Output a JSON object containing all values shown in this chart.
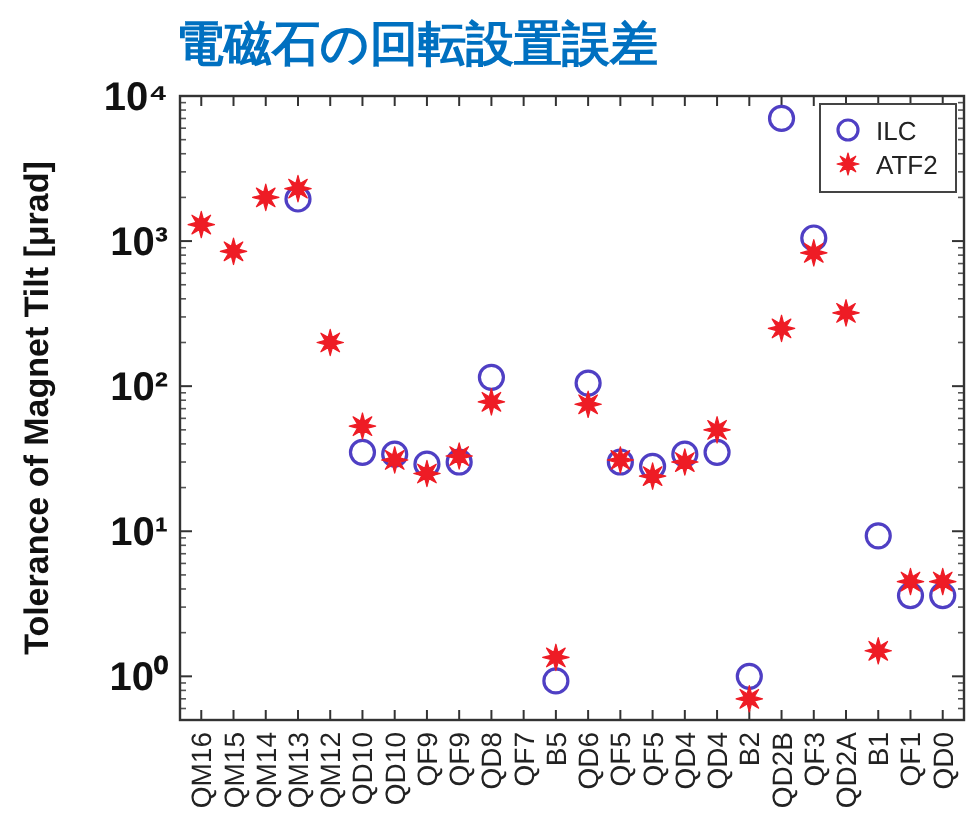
{
  "chart_data": {
    "type": "scatter",
    "title": "電磁石の回転設置誤差",
    "ylabel": "Tolerance of Magnet Tilt [μrad]",
    "categories": [
      "QM16",
      "QM15",
      "QM14",
      "QM13",
      "QM12",
      "QD10",
      "QD10",
      "QF9",
      "QF9",
      "QD8",
      "QF7",
      "B5",
      "QD6",
      "QF5",
      "QF5",
      "QD4",
      "QD4",
      "B2",
      "QD2B",
      "QF3",
      "QD2A",
      "B1",
      "QF1",
      "QD0"
    ],
    "series": [
      {
        "name": "ILC",
        "color": "#4f3fc4",
        "marker": "circle",
        "values": [
          null,
          null,
          null,
          1950,
          null,
          35,
          34,
          29,
          30,
          115,
          null,
          0.93,
          105,
          30,
          28,
          34,
          35,
          1.0,
          7000,
          1050,
          null,
          9.3,
          3.6,
          3.6
        ]
      },
      {
        "name": "ATF2",
        "color": "#ee1c25",
        "marker": "star",
        "values": [
          1300,
          850,
          2000,
          2300,
          200,
          53,
          31,
          25,
          33,
          78,
          null,
          1.35,
          75,
          31,
          24,
          30,
          50,
          0.7,
          250,
          830,
          320,
          1.5,
          4.5,
          4.5
        ]
      }
    ],
    "log": true,
    "ylim": [
      0.5,
      10000
    ],
    "yticks": [
      {
        "value": 1,
        "label": "10⁰"
      },
      {
        "value": 10,
        "label": "10¹"
      },
      {
        "value": 100,
        "label": "10²"
      },
      {
        "value": 1000,
        "label": "10³"
      },
      {
        "value": 10000,
        "label": "10⁴"
      }
    ],
    "legend": "top right"
  }
}
